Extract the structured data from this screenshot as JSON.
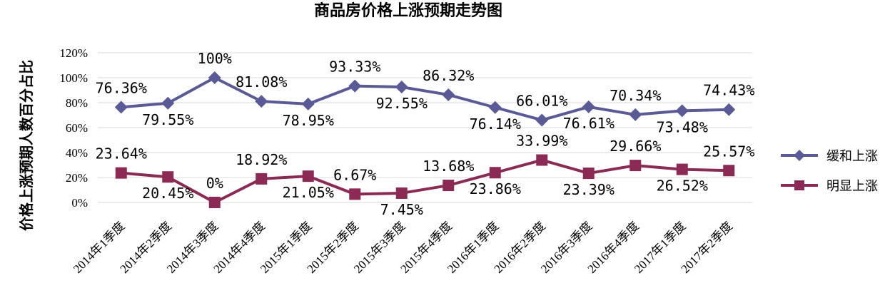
{
  "chart_data": {
    "type": "line",
    "title": "商品房价格上涨预期走势图",
    "ylabel": "价格上涨预期人数百分占比",
    "xlabel": "",
    "ylim": [
      0,
      120
    ],
    "yticks": [
      "0%",
      "20%",
      "40%",
      "60%",
      "80%",
      "100%",
      "120%"
    ],
    "grid": true,
    "legend_position": "right",
    "categories": [
      "2014年1季度",
      "2014年2季度",
      "2014年3季度",
      "2014年4季度",
      "2015年1季度",
      "2015年2季度",
      "2015年3季度",
      "2015年4季度",
      "2016年1季度",
      "2016年2季度",
      "2016年3季度",
      "2016年4季度",
      "2017年1季度",
      "2017年2季度"
    ],
    "series": [
      {
        "name": "缓和上涨",
        "color": "#5a5a96",
        "marker": "diamond",
        "values": [
          76.36,
          79.55,
          100,
          81.08,
          78.95,
          93.33,
          92.55,
          86.32,
          76.14,
          66.01,
          76.61,
          70.34,
          73.48,
          74.43
        ],
        "labels": [
          "76.36%",
          "79.55%",
          "100%",
          "81.08%",
          "78.95%",
          "93.33%",
          "92.55%",
          "86.32%",
          "76.14%",
          "66.01%",
          "76.61%",
          "70.34%",
          "73.48%",
          "74.43%"
        ]
      },
      {
        "name": "明显上涨",
        "color": "#8b2a55",
        "marker": "square",
        "values": [
          23.64,
          20.45,
          0,
          18.92,
          21.05,
          6.67,
          7.45,
          13.68,
          23.86,
          33.99,
          23.39,
          29.66,
          26.52,
          25.57
        ],
        "labels": [
          "23.64%",
          "20.45%",
          "0%",
          "18.92%",
          "21.05%",
          "6.67%",
          "7.45%",
          "13.68%",
          "23.86%",
          "33.99%",
          "23.39%",
          "29.66%",
          "26.52%",
          "25.57%"
        ]
      }
    ]
  }
}
